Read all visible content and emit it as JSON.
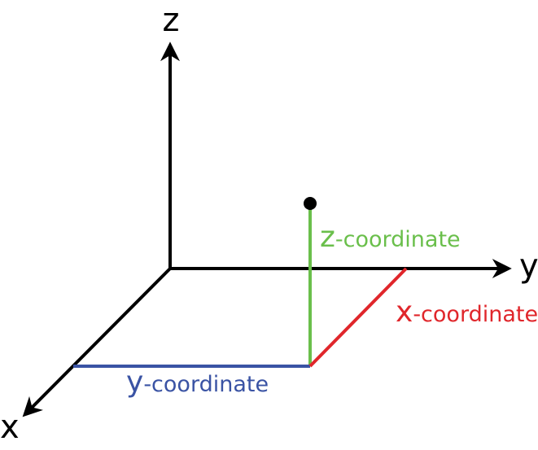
{
  "axes": {
    "z": "z",
    "y": "y",
    "x": "x"
  },
  "coordinates": {
    "z": {
      "letter": "z",
      "suffix": "-coordinate"
    },
    "x": {
      "letter": "x",
      "suffix": "-coordinate"
    },
    "y": {
      "letter": "y",
      "suffix": "-coordinate"
    }
  }
}
